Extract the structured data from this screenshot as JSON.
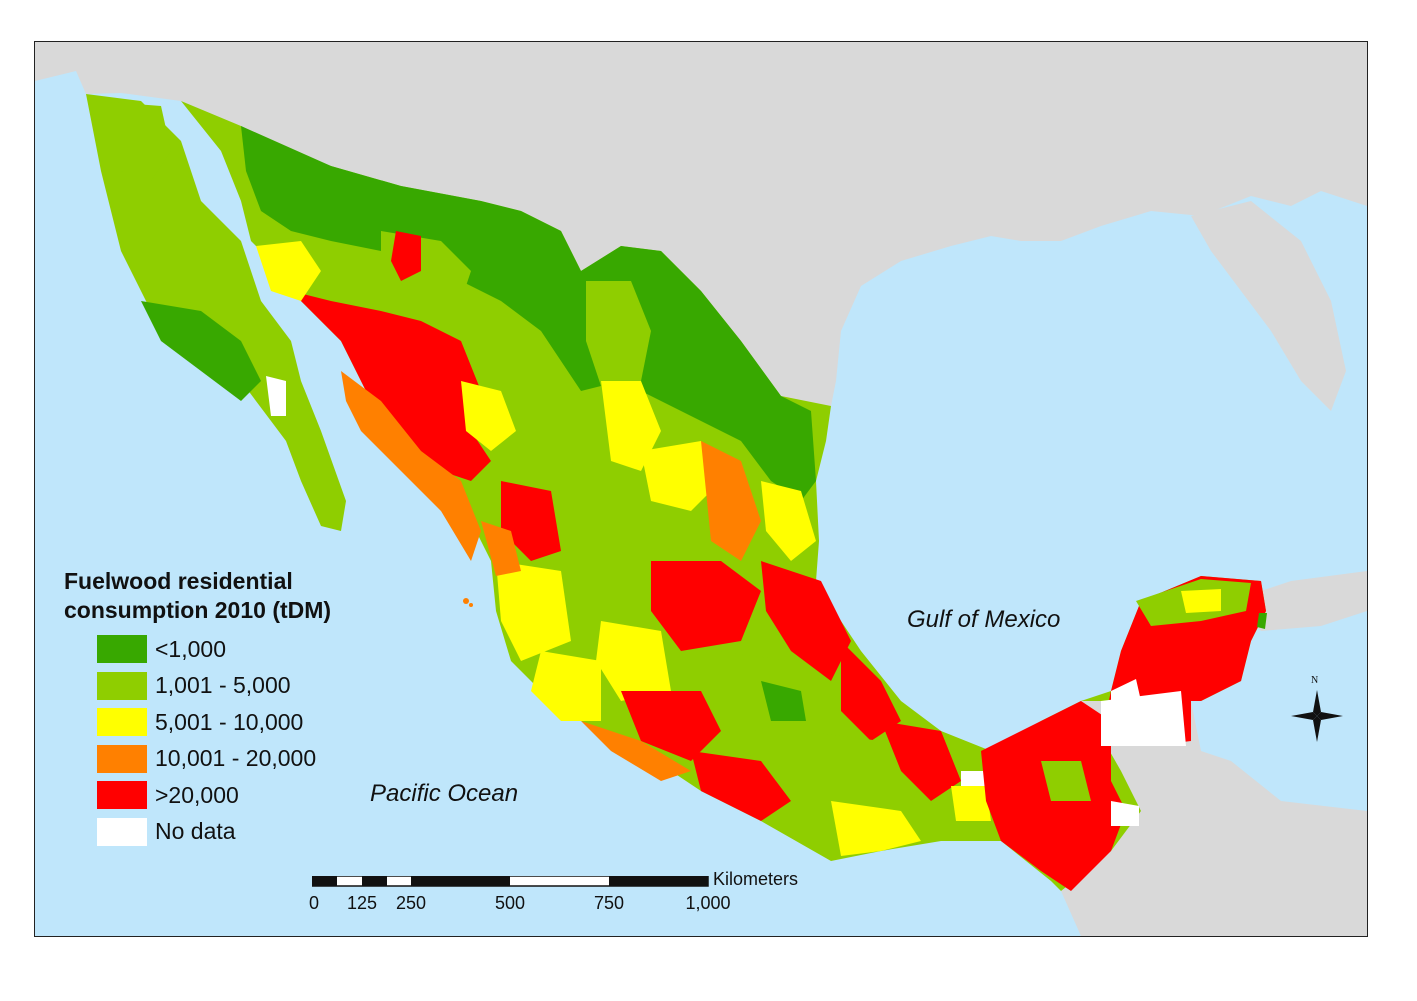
{
  "legend": {
    "title_line1": "Fuelwood residential",
    "title_line2": "consumption 2010 (tDM)",
    "items": [
      {
        "label": "<1,000",
        "color": "#38a800"
      },
      {
        "label": "1,001 - 5,000",
        "color": "#8fce00"
      },
      {
        "label": "5,001 - 10,000",
        "color": "#ffff00"
      },
      {
        "label": "10,001 - 20,000",
        "color": "#ff8000"
      },
      {
        "label": ">20,000",
        "color": "#ff0000"
      },
      {
        "label": "No data",
        "color": "#ffffff"
      }
    ]
  },
  "labels": {
    "gulf": "Gulf of Mexico",
    "pacific": "Pacific Ocean"
  },
  "scale": {
    "unit": "Kilometers",
    "ticks": [
      "0",
      "125",
      "250",
      "500",
      "750",
      "1,000"
    ]
  },
  "north": "N",
  "colors": {
    "water": "#bfe6fb",
    "land_outside": "#d9d9d9"
  }
}
